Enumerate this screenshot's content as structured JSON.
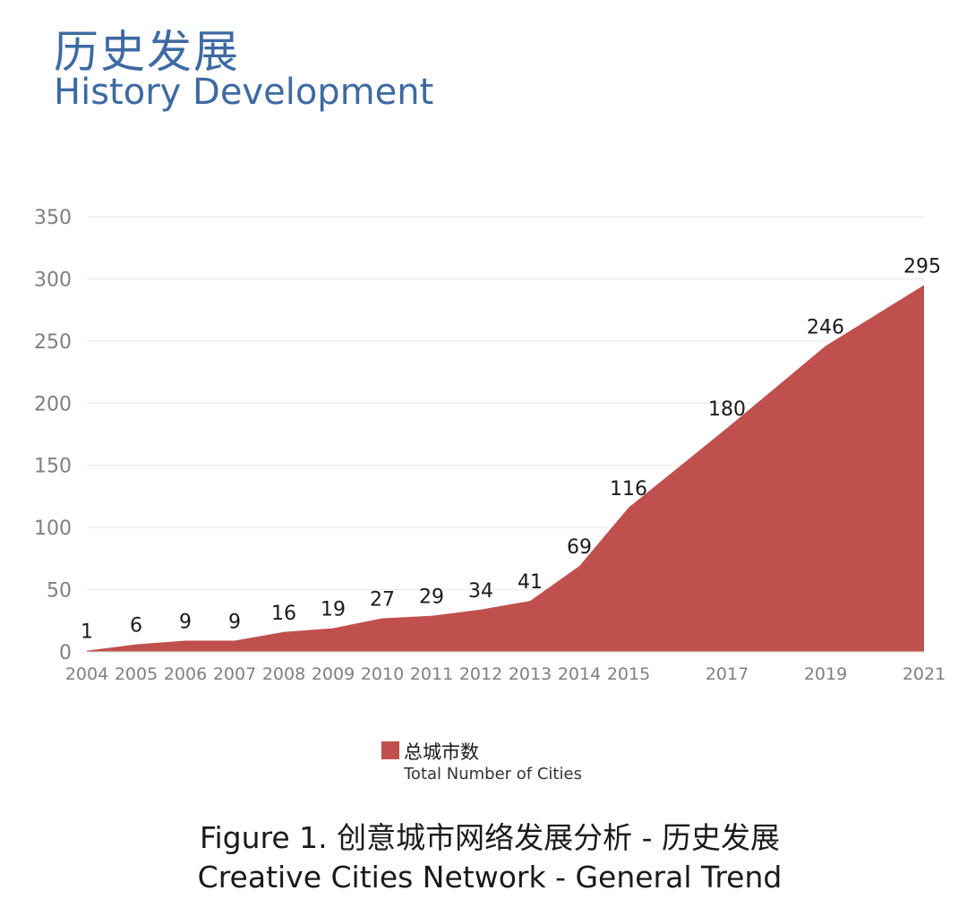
{
  "header": {
    "title_cn": "历史发展",
    "title_en": "History Development"
  },
  "caption": {
    "line1": "Figure 1. 创意城市网络发展分析 - 历史发展",
    "line2": "Creative Cities Network - General Trend"
  },
  "legend": {
    "label_cn": "总城市数",
    "label_en": "Total Number of Cities"
  },
  "colors": {
    "area": "#c0504d",
    "title": "#3e6aa3",
    "grid": "#e6e6e6",
    "tick": "#7f7f7f"
  },
  "chart_data": {
    "type": "area",
    "x": [
      2004,
      2005,
      2006,
      2007,
      2008,
      2009,
      2010,
      2011,
      2012,
      2013,
      2014,
      2015,
      2017,
      2019,
      2021
    ],
    "x_labels": [
      "2004",
      "2005",
      "2006",
      "2007",
      "2008",
      "2009",
      "2010",
      "2011",
      "2012",
      "2013",
      "2014",
      "2015",
      "2017",
      "2019",
      "2021"
    ],
    "series": [
      {
        "name": "总城市数 Total Number of Cities",
        "values": [
          1,
          6,
          9,
          9,
          16,
          19,
          27,
          29,
          34,
          41,
          69,
          116,
          180,
          246,
          295
        ]
      }
    ],
    "y_ticks": [
      "0",
      "50",
      "100",
      "150",
      "200",
      "250",
      "300",
      "350"
    ],
    "ylim": [
      0,
      350
    ],
    "grid": true,
    "legend_position": "bottom"
  }
}
